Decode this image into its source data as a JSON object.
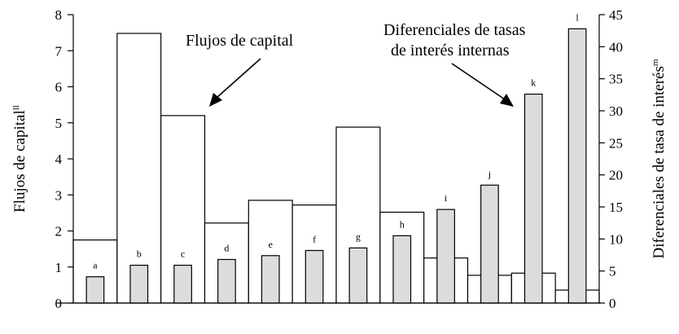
{
  "chart_data": {
    "type": "bar",
    "categories": [
      "a",
      "b",
      "c",
      "d",
      "e",
      "f",
      "g",
      "h",
      "i",
      "j",
      "k",
      "l"
    ],
    "series": [
      {
        "axis": "left",
        "style": "white",
        "values": [
          1.75,
          7.48,
          5.2,
          2.22,
          2.85,
          2.72,
          4.88,
          2.52,
          1.25,
          0.77,
          0.83,
          0.36
        ]
      },
      {
        "axis": "right",
        "style": "gray",
        "values": [
          4.1,
          5.9,
          5.9,
          6.8,
          7.4,
          8.2,
          8.6,
          10.5,
          14.6,
          18.4,
          32.6,
          42.8
        ]
      }
    ],
    "ylabel_left": "Flujos de capital",
    "ylabel_left_sup": "ll",
    "ylabel_right": "Diferenciales de tasa de interés",
    "ylabel_right_sup": "m",
    "ylim_left": [
      0,
      8
    ],
    "ylim_right": [
      0,
      45
    ],
    "yticks_left": [
      "0",
      "1",
      "2",
      "3",
      "4",
      "5",
      "6",
      "7",
      "8"
    ],
    "yticks_right": [
      "0",
      "5",
      "10",
      "15",
      "20",
      "25",
      "30",
      "35",
      "40",
      "45"
    ],
    "annotations": {
      "capital": "Flujos de capital",
      "diff_line1": "Diferenciales de tasas",
      "diff_line2": "de interés internas"
    },
    "grid": false,
    "colors": {
      "gray_bar": "#dcdcdc",
      "white_bar": "#ffffff",
      "stroke": "#000000"
    }
  }
}
